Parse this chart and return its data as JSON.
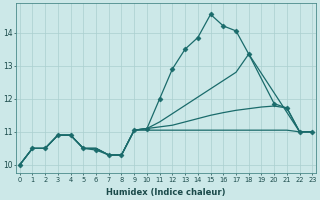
{
  "xlabel": "Humidex (Indice chaleur)",
  "background_color": "#cce8e8",
  "grid_color": "#aacfcf",
  "line_color": "#1a6b6b",
  "xlim": [
    -0.3,
    23.3
  ],
  "ylim": [
    9.75,
    14.9
  ],
  "xticks": [
    0,
    1,
    2,
    3,
    4,
    5,
    6,
    7,
    8,
    9,
    10,
    11,
    12,
    13,
    14,
    15,
    16,
    17,
    18,
    19,
    20,
    21,
    22,
    23
  ],
  "yticks": [
    10,
    11,
    12,
    13,
    14
  ],
  "series": [
    {
      "x": [
        0,
        1,
        2,
        3,
        4,
        5,
        6,
        7,
        8,
        9,
        10,
        11,
        12,
        13,
        14,
        15,
        16,
        17,
        18,
        20,
        21,
        22,
        23
      ],
      "y": [
        10.0,
        10.5,
        10.5,
        10.9,
        10.9,
        10.5,
        10.45,
        10.3,
        10.3,
        11.05,
        11.1,
        12.0,
        12.9,
        13.5,
        13.85,
        14.55,
        14.2,
        14.05,
        13.35,
        11.85,
        11.72,
        11.0,
        11.0
      ],
      "marker": "D",
      "markersize": 2.5,
      "linewidth": 0.9
    },
    {
      "x": [
        0,
        1,
        2,
        3,
        4,
        5,
        6,
        7,
        8,
        9,
        10,
        11,
        12,
        13,
        14,
        15,
        16,
        17,
        18,
        22,
        23
      ],
      "y": [
        10.0,
        10.5,
        10.5,
        10.9,
        10.9,
        10.5,
        10.5,
        10.3,
        10.3,
        11.05,
        11.1,
        11.3,
        11.55,
        11.8,
        12.05,
        12.3,
        12.55,
        12.8,
        13.35,
        11.0,
        11.0
      ],
      "marker": null,
      "linewidth": 0.9
    },
    {
      "x": [
        0,
        1,
        2,
        3,
        4,
        5,
        6,
        7,
        8,
        9,
        10,
        11,
        12,
        13,
        14,
        15,
        16,
        17,
        18,
        19,
        20,
        21,
        22,
        23
      ],
      "y": [
        10.0,
        10.5,
        10.5,
        10.9,
        10.9,
        10.5,
        10.5,
        10.3,
        10.3,
        11.05,
        11.1,
        11.15,
        11.2,
        11.3,
        11.4,
        11.5,
        11.58,
        11.65,
        11.7,
        11.75,
        11.78,
        11.72,
        11.0,
        11.0
      ],
      "marker": null,
      "linewidth": 0.9
    },
    {
      "x": [
        0,
        1,
        2,
        3,
        4,
        5,
        6,
        7,
        8,
        9,
        10,
        11,
        12,
        13,
        14,
        15,
        16,
        17,
        18,
        19,
        20,
        21,
        22,
        23
      ],
      "y": [
        10.0,
        10.5,
        10.5,
        10.9,
        10.9,
        10.5,
        10.5,
        10.3,
        10.3,
        11.05,
        11.05,
        11.05,
        11.05,
        11.05,
        11.05,
        11.05,
        11.05,
        11.05,
        11.05,
        11.05,
        11.05,
        11.05,
        11.0,
        11.0
      ],
      "marker": null,
      "linewidth": 0.9
    }
  ]
}
